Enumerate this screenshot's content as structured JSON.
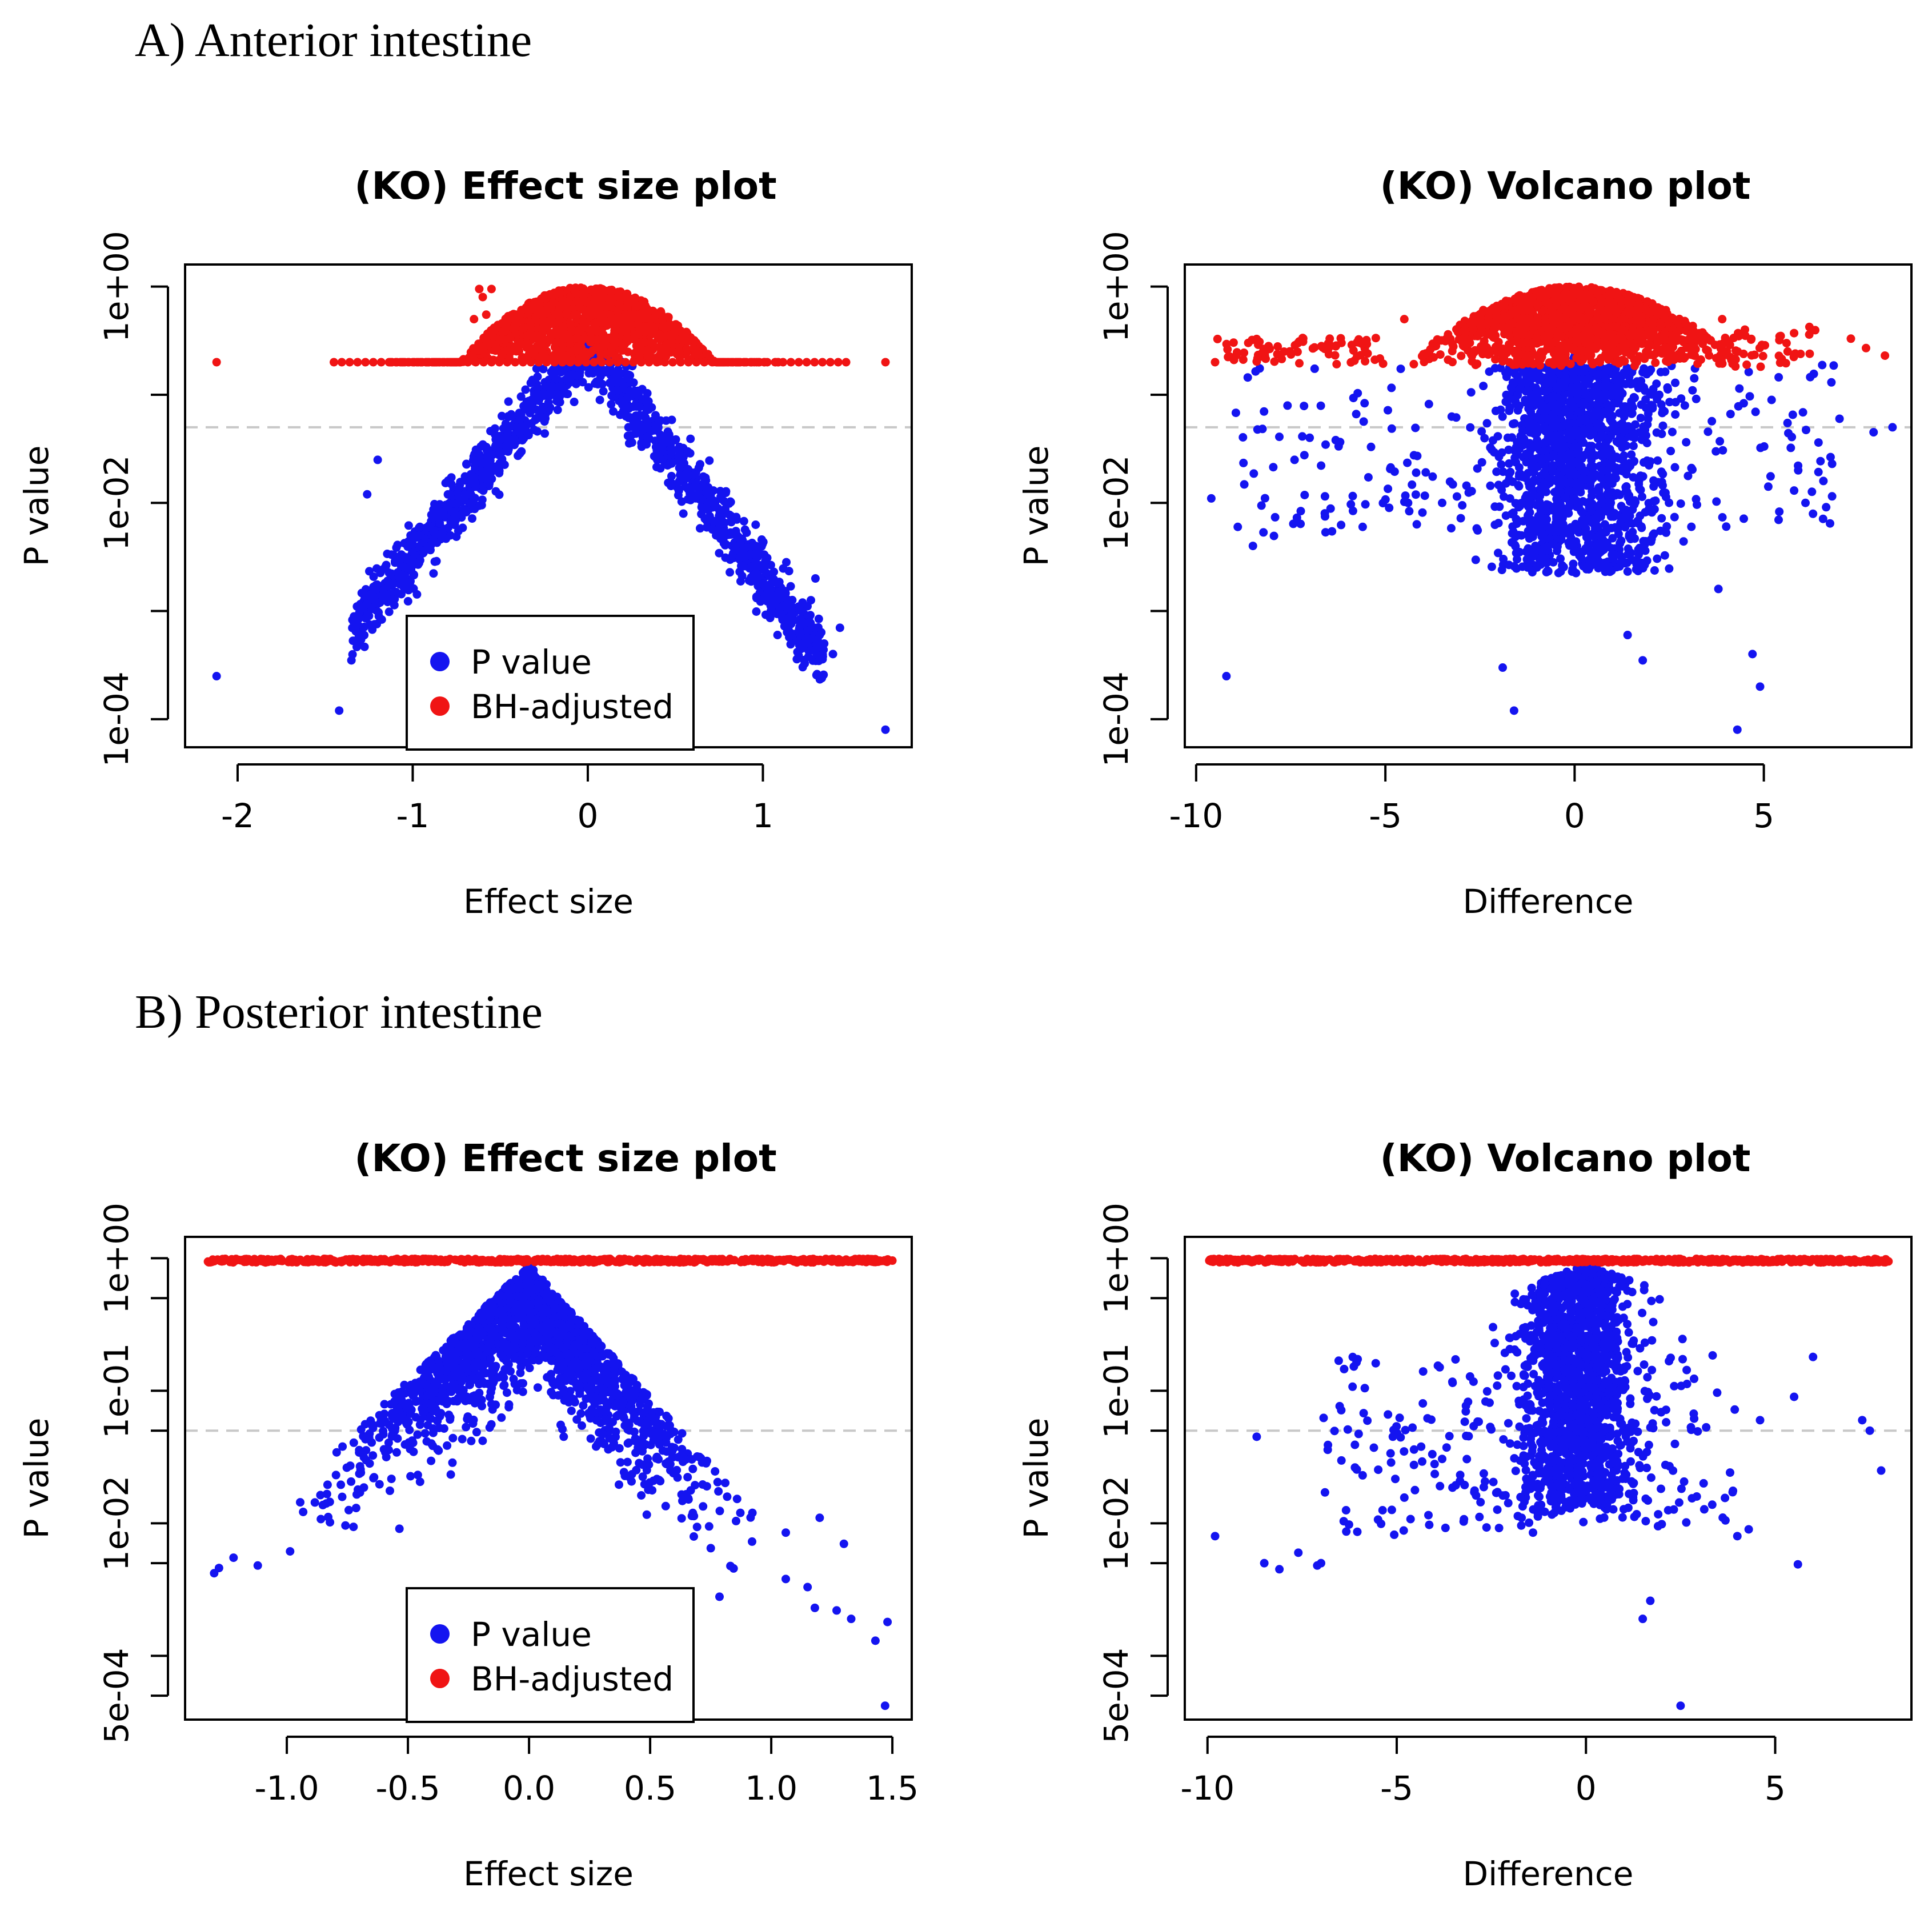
{
  "sections": [
    {
      "title": "A) Anterior intestine"
    },
    {
      "title": "B) Posterior intestine"
    }
  ],
  "colors": {
    "p_value": "#1414f0",
    "bh_adjusted": "#f01414",
    "threshold": "#c8c8c8",
    "axis": "#000000"
  },
  "chart_data": [
    {
      "id": "A-effect",
      "section": "A) Anterior intestine",
      "type": "scatter",
      "title": "(KO) Effect size plot",
      "xlabel": "Effect size",
      "ylabel": "P value",
      "y_scale": "log10",
      "xlim": [
        -2.3,
        1.85
      ],
      "ylim": [
        5.5e-05,
        1.6
      ],
      "xticks": [
        -2,
        -1,
        0,
        1
      ],
      "xtick_labels": [
        "-2",
        "-1",
        "0",
        "1"
      ],
      "yticks": [
        0.0001,
        0.001,
        0.01,
        0.1,
        1
      ],
      "ytick_labels": [
        "1e-04",
        "",
        "1e-02",
        "",
        "1e+00"
      ],
      "threshold": 0.05,
      "legend": {
        "position": "bottom-center",
        "entries": [
          "P value",
          "BH-adjusted"
        ]
      },
      "series": [
        {
          "name": "BH-adjusted",
          "color": "bh_adjusted",
          "shape": "effect_adjusted",
          "points": [
            [
              -2.12,
              0.2
            ],
            [
              1.7,
              0.2
            ],
            [
              -0.55,
              0.95
            ],
            [
              -0.6,
              0.8
            ],
            [
              -0.62,
              0.95
            ],
            [
              -0.65,
              0.5
            ],
            [
              -0.58,
              0.55
            ]
          ]
        },
        {
          "name": "P value",
          "color": "p_value",
          "shape": "effect_raw",
          "points": [
            [
              -2.12,
              0.00025
            ],
            [
              -1.42,
              0.00012
            ],
            [
              -1.35,
              0.00035
            ],
            [
              1.7,
              8e-05
            ],
            [
              1.44,
              0.0007
            ],
            [
              1.4,
              0.0004
            ],
            [
              1.35,
              0.0005
            ],
            [
              -1.26,
              0.012
            ],
            [
              -1.2,
              0.025
            ],
            [
              1.3,
              0.002
            ]
          ]
        }
      ]
    },
    {
      "id": "A-volcano",
      "section": "A) Anterior intestine",
      "type": "scatter",
      "title": "(KO) Volcano plot",
      "xlabel": "Difference",
      "ylabel": "P value",
      "y_scale": "log10",
      "xlim": [
        -10.3,
        8.9
      ],
      "ylim": [
        5.5e-05,
        1.6
      ],
      "xticks": [
        -10,
        -5,
        0,
        5
      ],
      "xtick_labels": [
        "-10",
        "-5",
        "0",
        "5"
      ],
      "yticks": [
        0.0001,
        0.001,
        0.01,
        0.1,
        1
      ],
      "ytick_labels": [
        "1e-04",
        "",
        "1e-02",
        "",
        "1e+00"
      ],
      "threshold": 0.05,
      "series": [
        {
          "name": "BH-adjusted",
          "color": "bh_adjusted",
          "shape": "volcano_adjusted",
          "points": [
            [
              -9.5,
              0.2
            ],
            [
              -9.0,
              0.21
            ],
            [
              8.2,
              0.23
            ],
            [
              7.7,
              0.27
            ],
            [
              7.3,
              0.33
            ],
            [
              6.2,
              0.36
            ],
            [
              -6.5,
              0.27
            ],
            [
              -5.5,
              0.32
            ],
            [
              3.9,
              0.5
            ],
            [
              4.5,
              0.4
            ],
            [
              5.6,
              0.3
            ],
            [
              -4.5,
              0.5
            ]
          ]
        },
        {
          "name": "P value",
          "color": "p_value",
          "shape": "volcano_raw",
          "points": [
            [
              -9.6,
              0.011
            ],
            [
              -9.2,
              0.00025
            ],
            [
              -8.9,
              0.006
            ],
            [
              -8.5,
              0.004
            ],
            [
              -7.4,
              0.025
            ],
            [
              -7.0,
              0.04
            ],
            [
              -6.6,
              0.008
            ],
            [
              -5.6,
              0.006
            ],
            [
              -4.9,
              0.009
            ],
            [
              -4.4,
              0.01
            ],
            [
              -3.5,
              0.01
            ],
            [
              -1.9,
              0.0003
            ],
            [
              -1.6,
              0.00012
            ],
            [
              4.3,
              8e-05
            ],
            [
              4.7,
              0.0004
            ],
            [
              4.9,
              0.0002
            ],
            [
              3.8,
              0.0016
            ],
            [
              6.1,
              0.01
            ],
            [
              5.8,
              0.013
            ],
            [
              8.4,
              0.05
            ],
            [
              7.9,
              0.045
            ],
            [
              7.0,
              0.06
            ],
            [
              1.8,
              0.00035
            ],
            [
              1.4,
              0.0006
            ]
          ]
        }
      ]
    },
    {
      "id": "B-effect",
      "section": "B) Posterior intestine",
      "type": "scatter",
      "title": "(KO) Effect size plot",
      "xlabel": "Effect size",
      "ylabel": "P value",
      "y_scale": "log10",
      "xlim": [
        -1.42,
        1.58
      ],
      "ylim": [
        0.00033,
        1.45
      ],
      "xticks": [
        -1.0,
        -0.5,
        0.0,
        0.5,
        1.0,
        1.5
      ],
      "xtick_labels": [
        "-1.0",
        "-0.5",
        "0.0",
        "0.5",
        "1.0",
        "1.5"
      ],
      "yticks": [
        0.0005,
        0.001,
        0.005,
        0.01,
        0.05,
        0.1,
        0.5,
        1
      ],
      "ytick_labels": [
        "5e-04",
        "",
        "",
        "1e-02",
        "",
        "1e-01",
        "",
        "1e+00"
      ],
      "threshold": 0.05,
      "legend": {
        "position": "bottom-center",
        "entries": [
          "P value",
          "BH-adjusted"
        ]
      },
      "series": [
        {
          "name": "BH-adjusted",
          "color": "bh_adjusted",
          "shape": "flat_adjusted",
          "points": [
            [
              -1.3,
              0.95
            ],
            [
              -1.27,
              0.96
            ],
            [
              1.47,
              0.95
            ],
            [
              1.5,
              0.96
            ]
          ]
        },
        {
          "name": "P value",
          "color": "p_value",
          "shape": "effect_raw_b",
          "points": [
            [
              -1.3,
              0.0042
            ],
            [
              -1.28,
              0.0046
            ],
            [
              -1.22,
              0.0055
            ],
            [
              -1.12,
              0.0048
            ],
            [
              1.47,
              0.00042
            ],
            [
              1.43,
              0.0013
            ],
            [
              1.48,
              0.0018
            ],
            [
              1.33,
              0.0019
            ],
            [
              1.27,
              0.0022
            ],
            [
              1.18,
              0.0023
            ],
            [
              1.15,
              0.0033
            ],
            [
              1.06,
              0.0038
            ],
            [
              1.3,
              0.007
            ],
            [
              1.2,
              0.011
            ],
            [
              1.06,
              0.0085
            ]
          ]
        }
      ]
    },
    {
      "id": "B-volcano",
      "section": "B) Posterior intestine",
      "type": "scatter",
      "title": "(KO) Volcano plot",
      "xlabel": "Difference",
      "ylabel": "P value",
      "y_scale": "log10",
      "xlim": [
        -10.6,
        8.6
      ],
      "ylim": [
        0.00033,
        1.45
      ],
      "xticks": [
        -10,
        -5,
        0,
        5
      ],
      "xtick_labels": [
        "-10",
        "-5",
        "0",
        "5"
      ],
      "yticks": [
        0.0005,
        0.001,
        0.005,
        0.01,
        0.05,
        0.1,
        0.5,
        1
      ],
      "ytick_labels": [
        "5e-04",
        "",
        "",
        "1e-02",
        "",
        "1e-01",
        "",
        "1e+00"
      ],
      "threshold": 0.05,
      "series": [
        {
          "name": "BH-adjusted",
          "color": "bh_adjusted",
          "shape": "flat_adjusted",
          "points": [
            [
              -9.8,
              0.96
            ],
            [
              7.1,
              0.95
            ],
            [
              7.5,
              0.95
            ],
            [
              7.8,
              0.95
            ],
            [
              6.2,
              0.96
            ],
            [
              5.6,
              0.95
            ]
          ]
        },
        {
          "name": "P value",
          "color": "p_value",
          "shape": "volcano_raw_b",
          "points": [
            [
              -9.8,
              0.008
            ],
            [
              -8.7,
              0.045
            ],
            [
              -8.5,
              0.005
            ],
            [
              -8.1,
              0.0045
            ],
            [
              -7.6,
              0.006
            ],
            [
              -7.0,
              0.005
            ],
            [
              -7.1,
              0.0048
            ],
            [
              7.8,
              0.025
            ],
            [
              7.5,
              0.05
            ],
            [
              7.3,
              0.06
            ],
            [
              6.0,
              0.18
            ],
            [
              5.5,
              0.09
            ],
            [
              5.6,
              0.0049
            ],
            [
              4.6,
              0.06
            ],
            [
              4.3,
              0.009
            ],
            [
              4.0,
              0.008
            ],
            [
              2.5,
              0.00042
            ],
            [
              1.5,
              0.0019
            ],
            [
              1.7,
              0.0026
            ],
            [
              -1.7,
              0.011
            ],
            [
              -1.4,
              0.0085
            ],
            [
              -4.0,
              0.028
            ]
          ]
        }
      ]
    }
  ]
}
